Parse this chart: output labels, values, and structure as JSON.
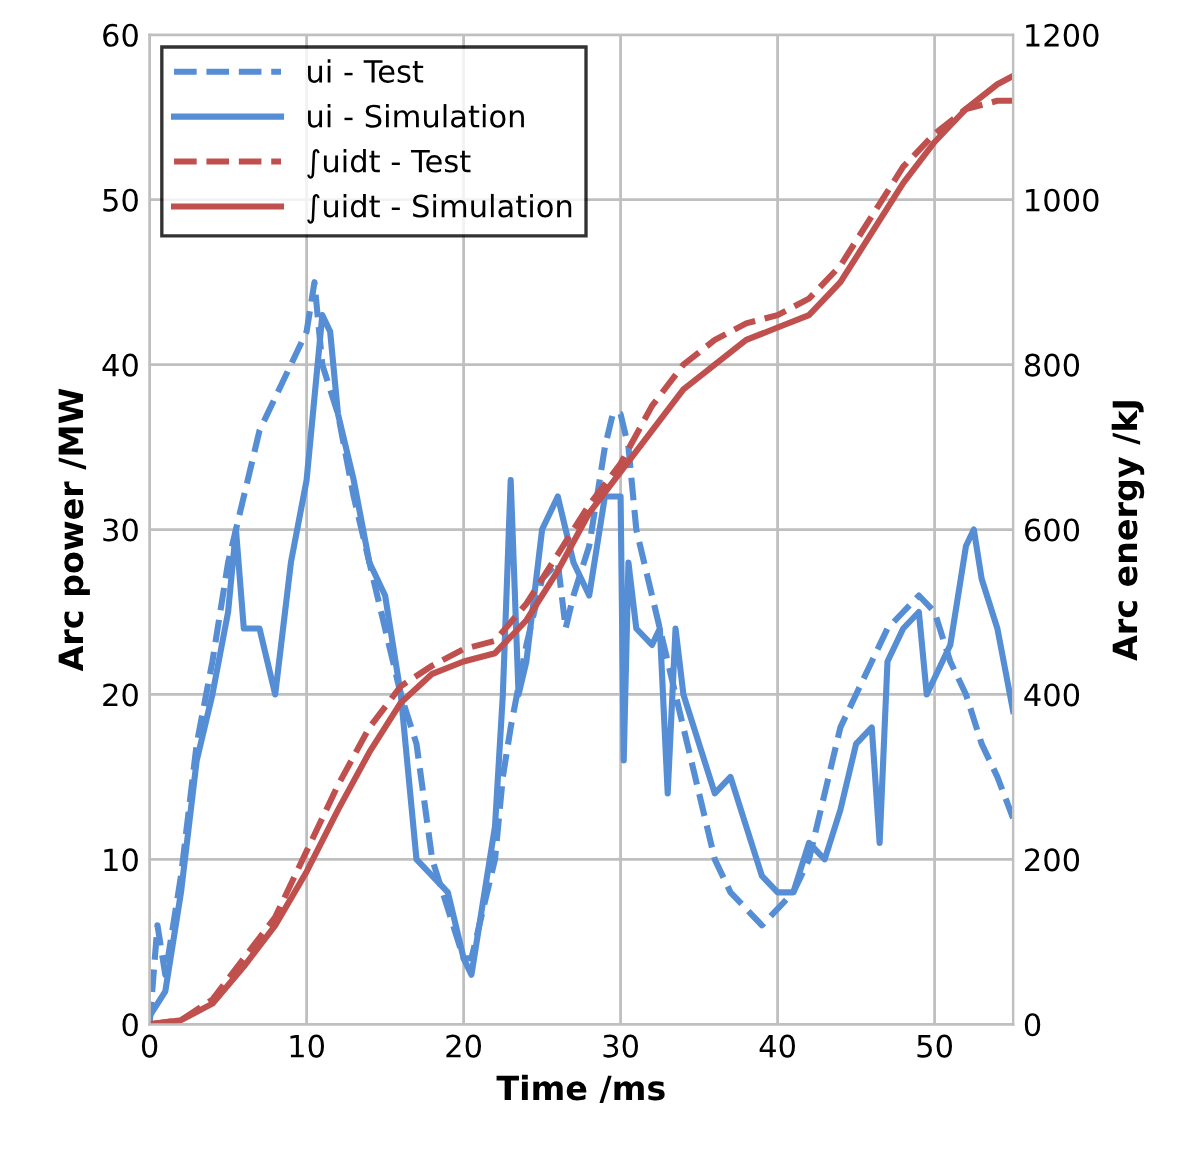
{
  "chart_data": {
    "type": "line",
    "xlabel": "Time /ms",
    "ylabel": "Arc power /MW",
    "y2label": "Arc energy /kJ",
    "xlim": [
      0,
      55
    ],
    "xticks": [
      0,
      10,
      20,
      30,
      40,
      50
    ],
    "ylim": [
      0,
      60
    ],
    "yticks": [
      0,
      10,
      20,
      30,
      40,
      50,
      60
    ],
    "y2lim": [
      0,
      1200
    ],
    "y2ticks": [
      0,
      200,
      400,
      600,
      800,
      1000,
      1200
    ],
    "grid": true,
    "legend": "top left",
    "series": [
      {
        "name": "ui - Test",
        "color": "#558ed5",
        "line_style": "dashed",
        "x": [
          0,
          0.5,
          1,
          2,
          3,
          4,
          5,
          6,
          7,
          8,
          9,
          10,
          10.5,
          11,
          12,
          13,
          14,
          15,
          16,
          17,
          18,
          19,
          20,
          20.5,
          21,
          22,
          22.5,
          23,
          24,
          25,
          26,
          26.5,
          27,
          28,
          29,
          29.5,
          30,
          30.5,
          31,
          32,
          33,
          34,
          35,
          36,
          37,
          38,
          39,
          40,
          41,
          42,
          43,
          44,
          45,
          46,
          47,
          48,
          49,
          50,
          51,
          52,
          53,
          54,
          55
        ],
        "values": [
          0,
          6,
          3,
          9,
          17,
          22,
          28,
          32,
          36,
          38,
          40,
          42,
          45,
          40,
          37,
          32,
          28,
          24,
          20,
          17,
          10,
          7,
          4,
          4,
          6,
          10,
          15,
          18,
          23,
          27,
          28,
          24,
          26,
          29,
          35,
          37,
          37,
          35,
          30,
          26,
          22,
          18,
          14,
          10,
          8,
          7,
          6,
          7,
          8,
          10,
          14,
          18,
          20,
          22,
          24,
          25,
          26,
          25,
          22,
          20,
          17,
          15,
          12.5
        ]
      },
      {
        "name": "ui - Simulation",
        "color": "#558ed5",
        "line_style": "solid",
        "x": [
          0,
          1,
          2,
          3,
          4,
          5,
          5.5,
          6,
          7,
          7.5,
          8,
          9,
          10,
          10.5,
          11,
          11.5,
          12,
          13,
          14,
          15,
          16,
          17,
          18,
          19,
          19.5,
          20,
          20.5,
          21,
          22,
          22.5,
          23,
          23.5,
          24,
          25,
          26,
          26.5,
          27,
          28,
          29,
          30,
          30.2,
          30.5,
          31,
          32,
          32.5,
          33,
          33.5,
          34,
          35,
          36,
          37,
          38,
          39,
          40,
          41,
          42,
          43,
          44,
          45,
          46,
          46.5,
          47,
          48,
          49,
          49.5,
          50,
          51,
          52,
          52.5,
          53,
          54,
          55
        ],
        "values": [
          0.5,
          2,
          8,
          16,
          20,
          25,
          30,
          24,
          24,
          22,
          20,
          28,
          33,
          38,
          43,
          42,
          37,
          33,
          28,
          26,
          20,
          10,
          9,
          8,
          6,
          4,
          3,
          6,
          12,
          20,
          33,
          20,
          22,
          30,
          32,
          30,
          28,
          26,
          32,
          32,
          16,
          28,
          24,
          23,
          24,
          14,
          24,
          20,
          17,
          14,
          15,
          12,
          9,
          8,
          8,
          11,
          10,
          13,
          17,
          18,
          11,
          22,
          24,
          25,
          20,
          21,
          23,
          29,
          30,
          27,
          24,
          19
        ]
      },
      {
        "name": "∫uidt - Test",
        "color": "#c0504d",
        "line_style": "dashed",
        "axis": "y2",
        "x": [
          0,
          2,
          4,
          6,
          8,
          10,
          12,
          14,
          16,
          18,
          20,
          22,
          24,
          26,
          28,
          30,
          32,
          34,
          36,
          38,
          40,
          42,
          44,
          46,
          48,
          50,
          52,
          54,
          55
        ],
        "values": [
          0,
          5,
          30,
          80,
          130,
          210,
          290,
          360,
          410,
          435,
          455,
          465,
          510,
          570,
          630,
          680,
          750,
          800,
          830,
          850,
          860,
          880,
          920,
          980,
          1040,
          1080,
          1110,
          1120,
          1120
        ]
      },
      {
        "name": "∫uidt - Simulation",
        "color": "#c0504d",
        "line_style": "solid",
        "axis": "y2",
        "x": [
          0,
          2,
          4,
          6,
          8,
          10,
          12,
          14,
          16,
          18,
          20,
          22,
          24,
          26,
          28,
          30,
          32,
          34,
          36,
          38,
          40,
          42,
          44,
          46,
          48,
          50,
          52,
          54,
          55
        ],
        "values": [
          0,
          5,
          25,
          70,
          120,
          185,
          260,
          330,
          390,
          425,
          440,
          450,
          490,
          550,
          620,
          670,
          720,
          770,
          800,
          830,
          845,
          860,
          900,
          960,
          1020,
          1070,
          1110,
          1140,
          1150
        ]
      }
    ]
  }
}
